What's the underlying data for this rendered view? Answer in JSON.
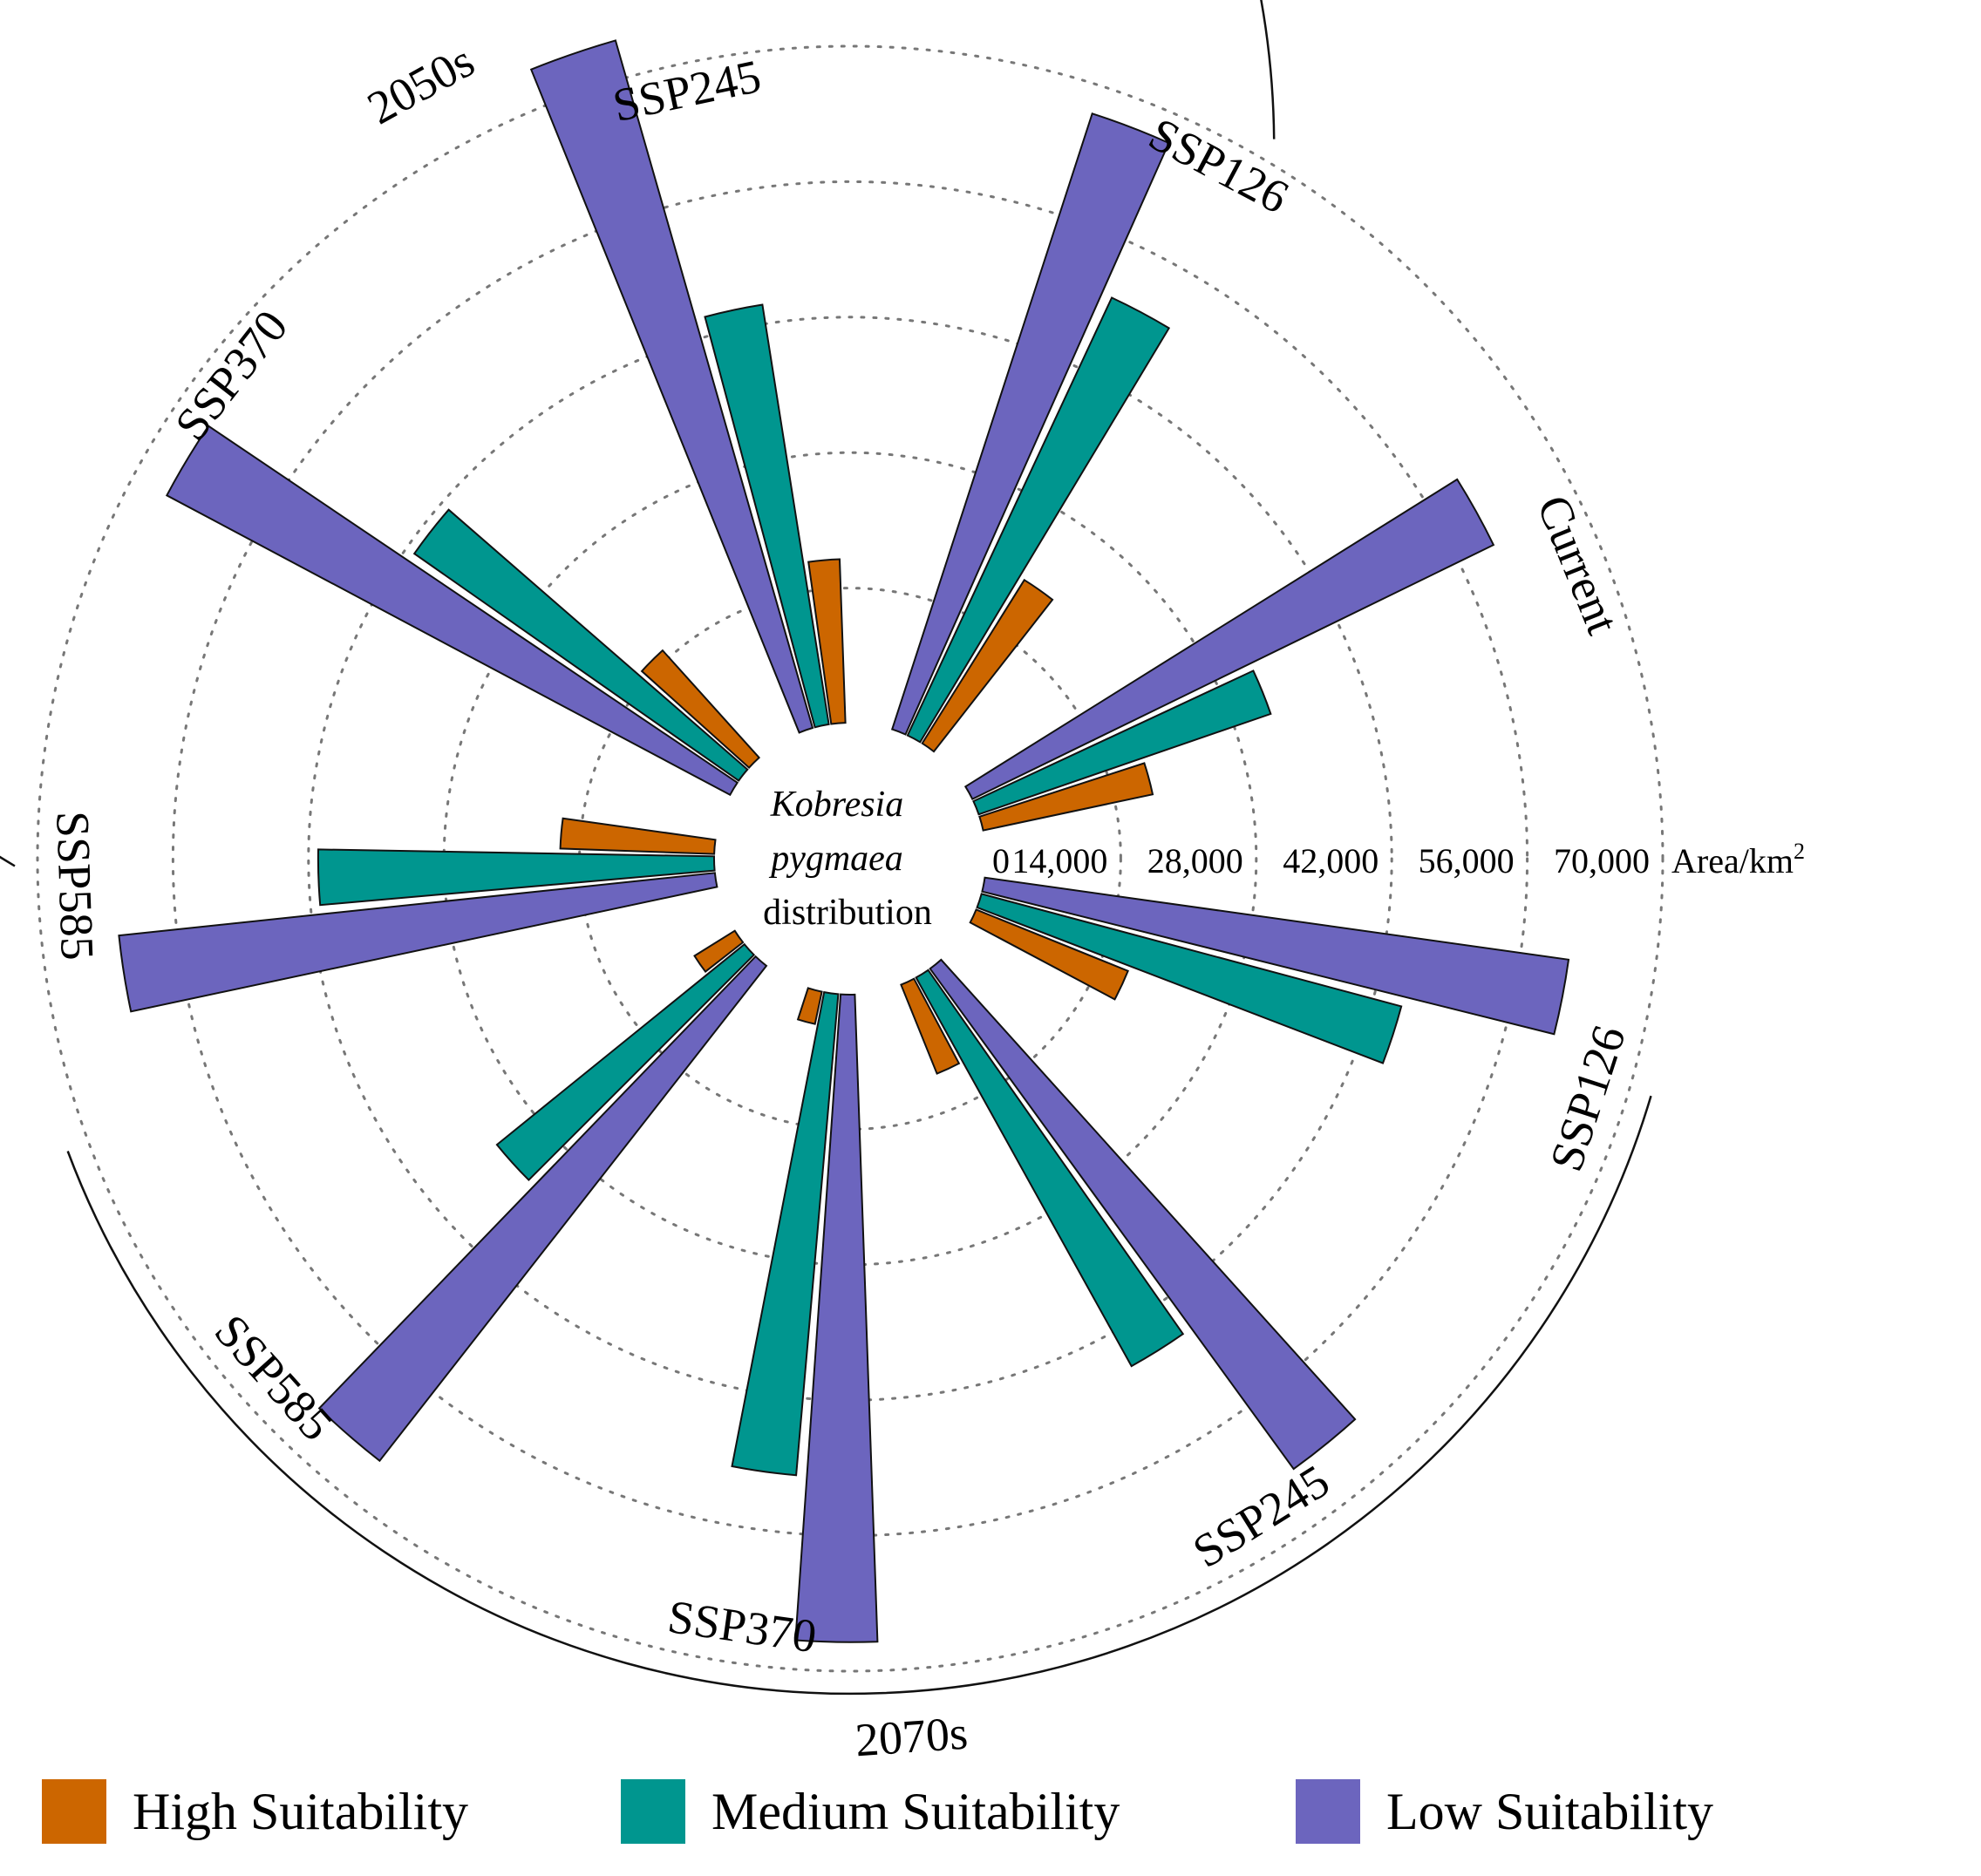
{
  "chart_data": {
    "type": "radial-bar",
    "title": "",
    "center_label": {
      "line1": "Kobresia",
      "line2": "pygmaea",
      "line3": "distribution"
    },
    "radial_axis": {
      "ticks": [
        "0",
        "14,000",
        "28,000",
        "42,000",
        "56,000",
        "70,000"
      ],
      "tick_values": [
        0,
        14000,
        28000,
        42000,
        56000,
        70000
      ],
      "unit_label": "Area/km",
      "unit_superscript": "2",
      "range": [
        0,
        70000
      ]
    },
    "groups": [
      {
        "label": "Current"
      },
      {
        "label": "SSP126"
      },
      {
        "label": "SSP245"
      },
      {
        "label": "SSP370"
      },
      {
        "label": "SSP585"
      },
      {
        "label": "SSP585"
      },
      {
        "label": "SSP370"
      },
      {
        "label": "SSP245"
      },
      {
        "label": "SSP126"
      }
    ],
    "periods": [
      {
        "label": "2050s"
      },
      {
        "label": "2070s"
      }
    ],
    "series": [
      {
        "name": "High Suitability",
        "color": "#CC6600",
        "values": [
          18000,
          20000,
          17000,
          15000,
          16000,
          5000,
          3500,
          10000,
          17000
        ]
      },
      {
        "name": "Medium Suitability",
        "color": "#00968F",
        "values": [
          32000,
          50000,
          44000,
          41000,
          41000,
          33000,
          50000,
          46000,
          45000
        ]
      },
      {
        "name": "Low Suitability",
        "color": "#6C65BE",
        "values": [
          60000,
          67000,
          74000,
          66000,
          62000,
          65000,
          67000,
          64000,
          61000
        ]
      }
    ]
  },
  "legend": {
    "items": [
      {
        "label": "High Suitability",
        "color": "#CC6600"
      },
      {
        "label": "Medium Suitability",
        "color": "#00968F"
      },
      {
        "label": "Low Suitability",
        "color": "#6C65BE"
      }
    ]
  }
}
